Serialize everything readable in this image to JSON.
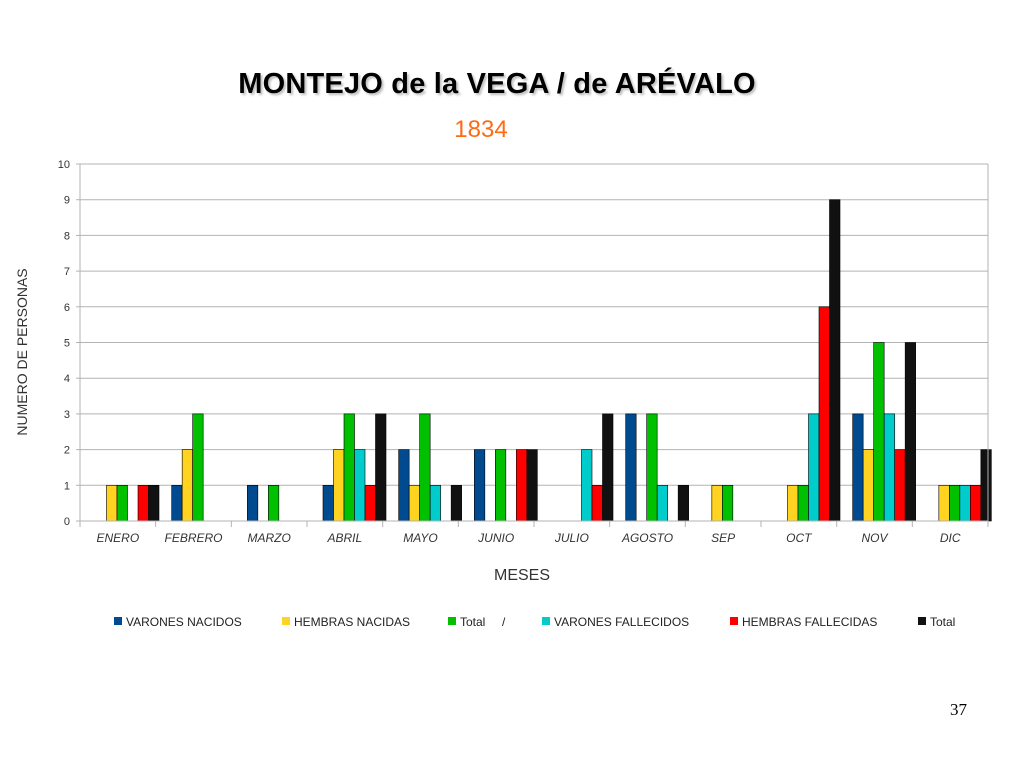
{
  "slide": {
    "title": "MONTEJO de la VEGA / de ARÉVALO",
    "subtitle": "1834",
    "page_number": "37"
  },
  "chart_data": {
    "type": "bar",
    "categories": [
      "ENERO",
      "FEBRERO",
      "MARZO",
      "ABRIL",
      "MAYO",
      "JUNIO",
      "JULIO",
      "AGOSTO",
      "SEP",
      "OCT",
      "NOV",
      "DIC"
    ],
    "series": [
      {
        "name": "VARONES NACIDOS",
        "color": "#004a8f",
        "values": [
          0,
          1,
          1,
          1,
          2,
          2,
          0,
          3,
          0,
          0,
          3,
          0
        ]
      },
      {
        "name": "HEMBRAS NACIDAS",
        "color": "#ffd320",
        "values": [
          1,
          2,
          0,
          2,
          1,
          0,
          0,
          0,
          1,
          1,
          2,
          1
        ]
      },
      {
        "name": "Total",
        "color": "#00c000",
        "values": [
          1,
          3,
          1,
          3,
          3,
          2,
          0,
          3,
          1,
          1,
          5,
          1
        ]
      },
      {
        "name": "VARONES FALLECIDOS",
        "color": "#00cccc",
        "values": [
          0,
          0,
          0,
          2,
          1,
          0,
          2,
          1,
          0,
          3,
          3,
          1
        ]
      },
      {
        "name": "HEMBRAS FALLECIDAS",
        "color": "#ff0000",
        "values": [
          1,
          0,
          0,
          1,
          0,
          2,
          1,
          0,
          0,
          6,
          2,
          1
        ]
      },
      {
        "name": "Total",
        "color": "#111111",
        "values": [
          1,
          0,
          0,
          3,
          1,
          2,
          3,
          1,
          0,
          9,
          5,
          2
        ]
      }
    ],
    "title": "MONTEJO de la VEGA / de ARÉVALO",
    "subtitle": "1834",
    "xlabel": "MESES",
    "ylabel": "NUMERO DE PERSONAS",
    "ylim": [
      0,
      10
    ],
    "yticks": [
      0,
      1,
      2,
      3,
      4,
      5,
      6,
      7,
      8,
      9,
      10
    ],
    "grid": true,
    "legend_position": "bottom",
    "legend_separator": "/"
  }
}
